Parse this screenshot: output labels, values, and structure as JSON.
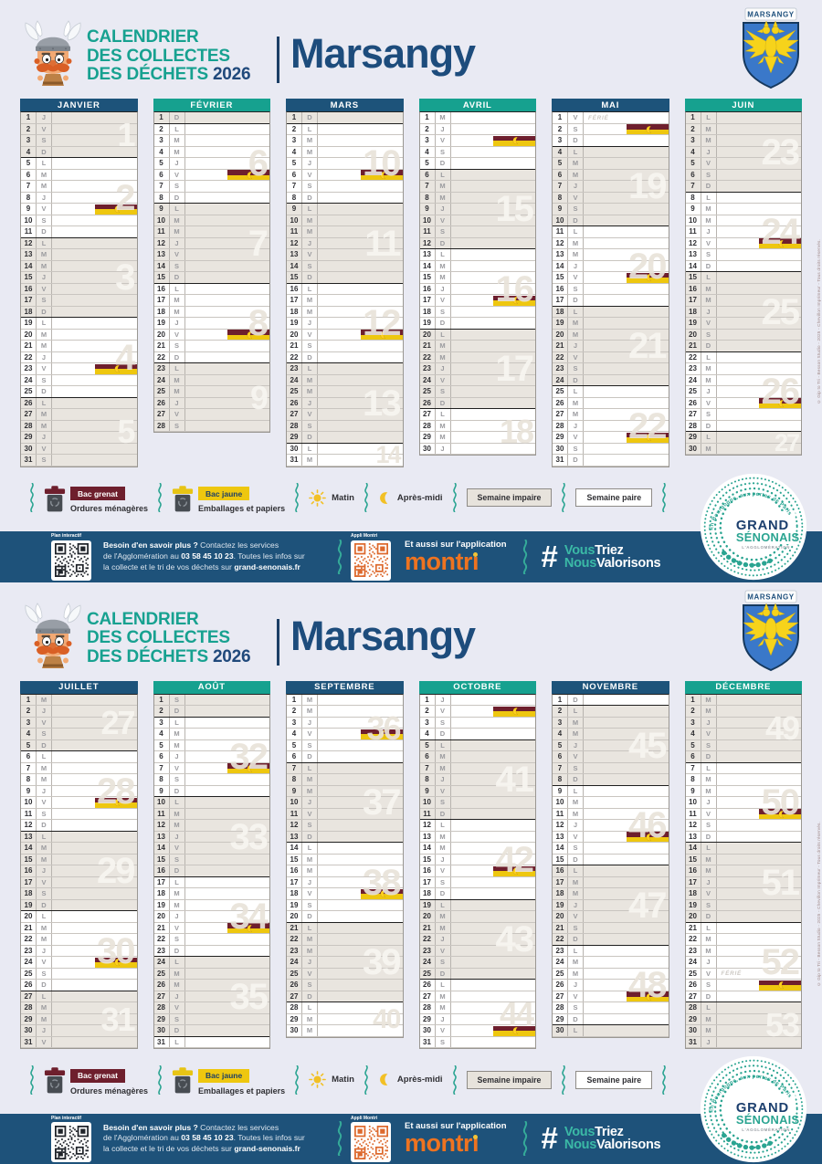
{
  "header": {
    "title_line1": "CALENDRIER",
    "title_line2": "DES COLLECTES",
    "title_line3": "DES DÉCHETS",
    "year": "2026",
    "commune": "Marsangy",
    "crest_label": "MARSANGY"
  },
  "calendar": {
    "day_letters": [
      "L",
      "M",
      "M",
      "J",
      "V",
      "S",
      "D"
    ],
    "ferie_label": "FÉRIÉ",
    "months": [
      {
        "name": "JANVIER",
        "days": 31,
        "first_dow": 3,
        "first_week": 1,
        "header": "navy",
        "collections": [
          {
            "day": 9,
            "bins": [
              "grenat",
              "jaune"
            ],
            "period": "apres_midi"
          },
          {
            "day": 23,
            "bins": [
              "grenat",
              "jaune"
            ],
            "period": "apres_midi"
          }
        ],
        "feries": [],
        "week_numbers": [
          [
            1,
            1,
            4
          ],
          [
            2,
            5,
            11
          ],
          [
            3,
            12,
            18
          ],
          [
            4,
            19,
            25
          ],
          [
            5,
            26,
            31
          ]
        ]
      },
      {
        "name": "FÉVRIER",
        "days": 28,
        "first_dow": 6,
        "first_week": 5,
        "header": "teal",
        "collections": [
          {
            "day": 6,
            "bins": [
              "grenat",
              "jaune"
            ],
            "period": "apres_midi"
          },
          {
            "day": 20,
            "bins": [
              "grenat",
              "jaune"
            ],
            "period": "apres_midi"
          }
        ],
        "feries": [],
        "week_numbers": [
          [
            6,
            2,
            8
          ],
          [
            7,
            9,
            15
          ],
          [
            8,
            16,
            22
          ],
          [
            9,
            23,
            28
          ]
        ]
      },
      {
        "name": "MARS",
        "days": 31,
        "first_dow": 6,
        "first_week": 9,
        "header": "navy",
        "collections": [
          {
            "day": 6,
            "bins": [
              "grenat",
              "jaune"
            ],
            "period": "apres_midi"
          },
          {
            "day": 20,
            "bins": [
              "grenat",
              "jaune"
            ],
            "period": "apres_midi"
          }
        ],
        "feries": [],
        "week_numbers": [
          [
            10,
            2,
            8
          ],
          [
            11,
            9,
            15
          ],
          [
            12,
            16,
            22
          ],
          [
            13,
            23,
            29
          ],
          [
            14,
            30,
            31
          ]
        ]
      },
      {
        "name": "AVRIL",
        "days": 30,
        "first_dow": 2,
        "first_week": 14,
        "header": "teal",
        "collections": [
          {
            "day": 3,
            "bins": [
              "grenat",
              "jaune"
            ],
            "period": "apres_midi"
          },
          {
            "day": 17,
            "bins": [
              "grenat",
              "jaune"
            ],
            "period": "apres_midi"
          }
        ],
        "feries": [],
        "week_numbers": [
          [
            15,
            6,
            12
          ],
          [
            16,
            13,
            19
          ],
          [
            17,
            20,
            26
          ],
          [
            18,
            27,
            30
          ]
        ]
      },
      {
        "name": "MAI",
        "days": 31,
        "first_dow": 4,
        "first_week": 18,
        "header": "navy",
        "collections": [
          {
            "day": 2,
            "bins": [
              "grenat",
              "jaune"
            ],
            "period": "apres_midi"
          },
          {
            "day": 15,
            "bins": [
              "grenat",
              "jaune"
            ],
            "period": "apres_midi"
          },
          {
            "day": 29,
            "bins": [
              "grenat",
              "jaune"
            ],
            "period": "apres_midi"
          }
        ],
        "feries": [
          1
        ],
        "week_numbers": [
          [
            19,
            4,
            10
          ],
          [
            20,
            11,
            17
          ],
          [
            21,
            18,
            24
          ],
          [
            22,
            25,
            31
          ]
        ]
      },
      {
        "name": "JUIN",
        "days": 30,
        "first_dow": 0,
        "first_week": 23,
        "header": "teal",
        "collections": [
          {
            "day": 12,
            "bins": [
              "grenat",
              "jaune"
            ],
            "period": "apres_midi"
          },
          {
            "day": 26,
            "bins": [
              "grenat",
              "jaune"
            ],
            "period": "apres_midi"
          }
        ],
        "feries": [],
        "week_numbers": [
          [
            23,
            1,
            7
          ],
          [
            24,
            8,
            14
          ],
          [
            25,
            15,
            21
          ],
          [
            26,
            22,
            28
          ],
          [
            27,
            29,
            30
          ]
        ]
      },
      {
        "name": "JUILLET",
        "days": 31,
        "first_dow": 2,
        "first_week": 27,
        "header": "navy",
        "collections": [
          {
            "day": 10,
            "bins": [
              "grenat",
              "jaune"
            ],
            "period": "apres_midi"
          },
          {
            "day": 24,
            "bins": [
              "grenat",
              "jaune"
            ],
            "period": "apres_midi"
          }
        ],
        "feries": [],
        "week_numbers": [
          [
            27,
            1,
            5
          ],
          [
            28,
            6,
            12
          ],
          [
            29,
            13,
            19
          ],
          [
            30,
            20,
            26
          ],
          [
            31,
            27,
            31
          ]
        ]
      },
      {
        "name": "AOÛT",
        "days": 31,
        "first_dow": 5,
        "first_week": 31,
        "header": "teal",
        "collections": [
          {
            "day": 7,
            "bins": [
              "grenat",
              "jaune"
            ],
            "period": "apres_midi"
          },
          {
            "day": 21,
            "bins": [
              "grenat",
              "jaune"
            ],
            "period": "apres_midi"
          }
        ],
        "feries": [],
        "week_numbers": [
          [
            32,
            3,
            9
          ],
          [
            33,
            10,
            16
          ],
          [
            34,
            17,
            23
          ],
          [
            35,
            24,
            30
          ]
        ]
      },
      {
        "name": "SEPTEMBRE",
        "days": 30,
        "first_dow": 1,
        "first_week": 36,
        "header": "navy",
        "collections": [
          {
            "day": 4,
            "bins": [
              "grenat",
              "jaune"
            ],
            "period": "apres_midi"
          },
          {
            "day": 18,
            "bins": [
              "grenat",
              "jaune"
            ],
            "period": "apres_midi"
          }
        ],
        "feries": [],
        "week_numbers": [
          [
            36,
            1,
            6
          ],
          [
            37,
            7,
            13
          ],
          [
            38,
            14,
            20
          ],
          [
            39,
            21,
            27
          ],
          [
            40,
            28,
            30
          ]
        ]
      },
      {
        "name": "OCTOBRE",
        "days": 31,
        "first_dow": 3,
        "first_week": 40,
        "header": "teal",
        "collections": [
          {
            "day": 2,
            "bins": [
              "grenat",
              "jaune"
            ],
            "period": "apres_midi"
          },
          {
            "day": 16,
            "bins": [
              "grenat",
              "jaune"
            ],
            "period": "apres_midi"
          },
          {
            "day": 30,
            "bins": [
              "grenat",
              "jaune"
            ],
            "period": "apres_midi"
          }
        ],
        "feries": [],
        "week_numbers": [
          [
            41,
            5,
            11
          ],
          [
            42,
            12,
            18
          ],
          [
            43,
            19,
            25
          ],
          [
            44,
            26,
            31
          ]
        ]
      },
      {
        "name": "NOVEMBRE",
        "days": 30,
        "first_dow": 6,
        "first_week": 44,
        "header": "navy",
        "collections": [
          {
            "day": 13,
            "bins": [
              "grenat",
              "jaune"
            ],
            "period": "apres_midi"
          },
          {
            "day": 27,
            "bins": [
              "grenat",
              "jaune"
            ],
            "period": "apres_midi"
          }
        ],
        "feries": [],
        "week_numbers": [
          [
            45,
            2,
            8
          ],
          [
            46,
            9,
            15
          ],
          [
            47,
            16,
            22
          ],
          [
            48,
            23,
            29
          ]
        ]
      },
      {
        "name": "DÉCEMBRE",
        "days": 31,
        "first_dow": 1,
        "first_week": 49,
        "header": "teal",
        "collections": [
          {
            "day": 11,
            "bins": [
              "grenat",
              "jaune"
            ],
            "period": "apres_midi"
          },
          {
            "day": 26,
            "bins": [
              "grenat",
              "jaune"
            ],
            "period": "apres_midi"
          }
        ],
        "feries": [
          25
        ],
        "week_numbers": [
          [
            49,
            1,
            6
          ],
          [
            50,
            7,
            13
          ],
          [
            51,
            14,
            20
          ],
          [
            52,
            21,
            27
          ],
          [
            53,
            28,
            31
          ]
        ]
      }
    ]
  },
  "legend": {
    "bac_grenat": {
      "label": "Bac grenat",
      "desc": "Ordures ménagères",
      "color": "#6e1f2d"
    },
    "bac_jaune": {
      "label": "Bac jaune",
      "desc": "Emballages et papiers",
      "color": "#eec70f"
    },
    "matin": "Matin",
    "apres_midi": "Après-midi",
    "semaine_impaire": "Semaine impaire",
    "semaine_paire": "Semaine paire"
  },
  "footer": {
    "qr1_label": "Plan interactif",
    "info_bold1": "Besoin d'en savoir plus ?",
    "info_text1": " Contactez les services",
    "info_line2_pre": "de l'Agglomération au ",
    "info_phone": "03 58 45 10 23",
    "info_line2_post": ". Toutes les infos sur",
    "info_line3_pre": "la collecte et le tri de vos déchets sur ",
    "info_site": "grand-senonais.fr",
    "qr2_label": "Appli Montri",
    "app_text": "Et aussi sur l'application",
    "app_name": "montri",
    "hashtag": "#",
    "h_vous": "Vous",
    "h_triez": "Triez",
    "h_nous": "Nous",
    "h_valorisons": "Valorisons"
  },
  "logo": {
    "arc_text": "En Bourgogne, aux portes de Paris",
    "line1": "GRAND",
    "line2": "SÉNONAIS",
    "line3": "L'AGGLOMÉRATION"
  },
  "credit": "© Gip to Tri - Besson Studio - 2025 - Chevillon Imprimeur - Tous droits réservés."
}
